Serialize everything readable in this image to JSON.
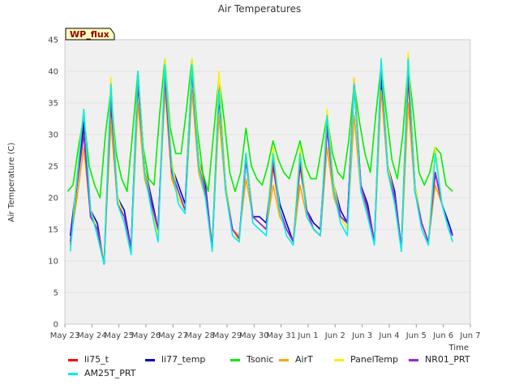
{
  "chart_data": {
    "type": "line",
    "title": "Air Temperatures",
    "xlabel": "Time",
    "ylabel": "Air Temperature (C)",
    "badge": "WP_flux",
    "ylim": [
      0,
      45
    ],
    "yticks": [
      0,
      5,
      10,
      15,
      20,
      25,
      30,
      35,
      40,
      45
    ],
    "xlim": [
      0,
      15
    ],
    "xticks": [
      "May 23",
      "May 24",
      "May 25",
      "May 26",
      "May 27",
      "May 28",
      "May 29",
      "May 30",
      "May 31",
      "Jun 1",
      "Jun 2",
      "Jun 3",
      "Jun 4",
      "Jun 5",
      "Jun 6",
      "Jun 7"
    ],
    "x_unit": "days since May 23",
    "banded_background": true,
    "series": [
      {
        "name": "li75_t",
        "color": "#ff0000",
        "x": [
          0.2,
          0.45,
          0.7,
          0.95,
          1.2,
          1.45,
          1.7,
          1.95,
          2.2,
          2.45,
          2.7,
          2.95,
          3.2,
          3.45,
          3.7,
          3.95,
          4.2,
          4.45,
          4.7,
          4.95,
          5.2,
          5.45,
          5.7,
          5.95,
          6.2,
          6.45,
          6.7,
          6.95,
          7.2,
          7.45,
          7.7,
          7.95,
          8.2,
          8.45,
          8.7,
          8.95,
          9.2,
          9.45,
          9.7,
          9.95,
          10.2,
          10.45,
          10.7,
          10.95,
          11.2,
          11.45,
          11.7,
          11.95,
          12.2,
          12.45,
          12.7,
          12.95,
          13.2,
          13.45,
          13.7,
          13.95,
          14.2,
          14.35
        ],
        "y": [
          12.5,
          22,
          31,
          17,
          15,
          9.5,
          35,
          19,
          17,
          12,
          38,
          24,
          19,
          15,
          39,
          24,
          20,
          18,
          40,
          25,
          21,
          12,
          38,
          21,
          15,
          13.5,
          26,
          17,
          16,
          15,
          25,
          18,
          15,
          13,
          25,
          18,
          15,
          14,
          31,
          21,
          17,
          16,
          39,
          22,
          18,
          13,
          41,
          24,
          20,
          12,
          39,
          21,
          16,
          13,
          24,
          19,
          15,
          14
        ]
      },
      {
        "name": "li77_temp",
        "color": "#0000cc",
        "x": [
          0.2,
          0.45,
          0.7,
          0.95,
          1.2,
          1.45,
          1.7,
          1.95,
          2.2,
          2.45,
          2.7,
          2.95,
          3.2,
          3.45,
          3.7,
          3.95,
          4.2,
          4.45,
          4.7,
          4.95,
          5.2,
          5.45,
          5.7,
          5.95,
          6.2,
          6.45,
          6.7,
          6.95,
          7.2,
          7.45,
          7.7,
          7.95,
          8.2,
          8.45,
          8.7,
          8.95,
          9.2,
          9.45,
          9.7,
          9.95,
          10.2,
          10.45,
          10.7,
          10.95,
          11.2,
          11.45,
          11.7,
          11.95,
          12.2,
          12.45,
          12.7,
          12.95,
          13.2,
          13.45,
          13.7,
          13.95,
          14.2,
          14.35
        ],
        "y": [
          14,
          23,
          32,
          18,
          16,
          9.5,
          37,
          20,
          18,
          12,
          40,
          25,
          20,
          15,
          40,
          25,
          22,
          19,
          41,
          26,
          22,
          12,
          36,
          22,
          15,
          13.5,
          27,
          17,
          17,
          16,
          26,
          19,
          16,
          13,
          26,
          18,
          16,
          15,
          32,
          22,
          18,
          16,
          38,
          22,
          19,
          13,
          39,
          25,
          21,
          12,
          42,
          22,
          16,
          13,
          24,
          19,
          16,
          14
        ]
      },
      {
        "name": "Tsonic",
        "color": "#00ee00",
        "x": [
          0.1,
          0.3,
          0.5,
          0.7,
          0.9,
          1.1,
          1.3,
          1.5,
          1.7,
          1.9,
          2.1,
          2.3,
          2.5,
          2.7,
          2.9,
          3.1,
          3.3,
          3.5,
          3.7,
          3.9,
          4.1,
          4.3,
          4.5,
          4.7,
          4.9,
          5.1,
          5.3,
          5.5,
          5.7,
          5.9,
          6.1,
          6.3,
          6.5,
          6.7,
          6.9,
          7.1,
          7.3,
          7.5,
          7.7,
          7.9,
          8.1,
          8.3,
          8.5,
          8.7,
          8.9,
          9.1,
          9.3,
          9.5,
          9.7,
          9.9,
          10.1,
          10.3,
          10.5,
          10.7,
          10.9,
          11.1,
          11.3,
          11.5,
          11.7,
          11.9,
          12.1,
          12.3,
          12.5,
          12.7,
          12.9,
          13.1,
          13.3,
          13.5,
          13.7,
          13.9,
          14.1,
          14.35
        ],
        "y": [
          21,
          22,
          28,
          33,
          25,
          22,
          20,
          30,
          37,
          27,
          23,
          21,
          30,
          40,
          28,
          23,
          22,
          33,
          42,
          31,
          27,
          27,
          34,
          42,
          31,
          24,
          21,
          30,
          39,
          32,
          24,
          21,
          24,
          31,
          25,
          23,
          22,
          25,
          29,
          26,
          24,
          23,
          26,
          29,
          25,
          23,
          23,
          28,
          33,
          27,
          24,
          23,
          29,
          38,
          32,
          27,
          24,
          33,
          41,
          33,
          26,
          23,
          30,
          41,
          33,
          24,
          22,
          24,
          28,
          27,
          22,
          21
        ]
      },
      {
        "name": "AirT",
        "color": "#ffa500",
        "x": [
          0.2,
          0.45,
          0.7,
          0.95,
          1.2,
          1.45,
          1.7,
          1.95,
          2.2,
          2.45,
          2.7,
          2.95,
          3.2,
          3.45,
          3.7,
          3.95,
          4.2,
          4.45,
          4.7,
          4.95,
          5.2,
          5.45,
          5.7,
          5.95,
          6.2,
          6.45,
          6.7,
          6.95,
          7.2,
          7.45,
          7.7,
          7.95,
          8.2,
          8.45,
          8.7,
          8.95,
          9.2,
          9.45,
          9.7,
          9.95,
          10.2,
          10.45,
          10.7,
          10.95,
          11.2,
          11.45,
          11.7,
          11.95,
          12.2,
          12.45,
          12.7,
          12.95,
          13.2,
          13.45,
          13.7,
          13.95,
          14.2,
          14.35
        ],
        "y": [
          13,
          20,
          28,
          17,
          15,
          10,
          32,
          19,
          17,
          12,
          35,
          23,
          19,
          15,
          37,
          23,
          20,
          18,
          37,
          24,
          20,
          13,
          33,
          21,
          15,
          14,
          23,
          17,
          16,
          15,
          22,
          17,
          15,
          13,
          22,
          17,
          15,
          14,
          28,
          20,
          17,
          15,
          33,
          21,
          18,
          13,
          37,
          24,
          20,
          12,
          35,
          21,
          16,
          13,
          22,
          19,
          15,
          14
        ]
      },
      {
        "name": "PanelTemp",
        "color": "#ffee00",
        "x": [
          0.2,
          0.45,
          0.7,
          0.95,
          1.2,
          1.45,
          1.7,
          1.95,
          2.2,
          2.45,
          2.7,
          2.95,
          3.2,
          3.45,
          3.7,
          3.95,
          4.2,
          4.45,
          4.7,
          4.95,
          5.2,
          5.45,
          5.7,
          5.95,
          6.2,
          6.45,
          6.7,
          6.95,
          7.2,
          7.45,
          7.7,
          7.95,
          8.2,
          8.45,
          8.7,
          8.95,
          9.2,
          9.45,
          9.7,
          9.95,
          10.2,
          10.45,
          10.7,
          10.95,
          11.2,
          11.45,
          11.7,
          11.95,
          12.2,
          12.45,
          12.7,
          12.95,
          13.2,
          13.45,
          13.7,
          13.95,
          14.2,
          14.35
        ],
        "y": [
          12,
          24,
          34,
          18,
          15,
          10,
          39,
          20,
          17,
          11,
          40,
          25,
          19,
          14,
          42,
          26,
          20,
          18,
          42,
          26,
          21,
          12,
          40,
          22,
          15,
          13,
          27,
          17,
          16,
          15,
          28,
          18,
          15,
          13,
          28,
          18,
          15,
          14,
          34,
          22,
          17,
          15,
          39,
          22,
          18,
          13,
          42,
          25,
          20,
          12,
          43,
          22,
          16,
          13,
          28,
          19,
          15,
          14
        ]
      },
      {
        "name": "NR01_PRT",
        "color": "#9922dd",
        "x": [
          0.2,
          0.45,
          0.7,
          0.95,
          1.2,
          1.45,
          1.7,
          1.95,
          2.2,
          2.45,
          2.7,
          2.95,
          3.2,
          3.45,
          3.7,
          3.95,
          4.2,
          4.45,
          4.7,
          4.95,
          5.2,
          5.45,
          5.7,
          5.95,
          6.2,
          6.45,
          6.7,
          6.95,
          7.2,
          7.45,
          7.7,
          7.95,
          8.2,
          8.45,
          8.7,
          8.95,
          9.2,
          9.45,
          9.7,
          9.95,
          10.2,
          10.45,
          10.7,
          10.95,
          11.2,
          11.45,
          11.7,
          11.95,
          12.2,
          12.45,
          12.7,
          12.95,
          13.2,
          13.45,
          13.7,
          13.95,
          14.2,
          14.35
        ],
        "y": [
          13,
          22,
          30,
          17,
          15,
          9.5,
          36,
          19,
          17,
          12,
          39,
          24,
          19,
          15,
          39,
          24,
          21,
          18,
          40,
          25,
          21,
          12,
          37,
          21,
          15,
          13.5,
          26,
          17,
          16,
          15,
          26,
          18,
          15,
          13,
          26,
          18,
          15,
          14,
          31,
          21,
          17,
          16,
          38,
          22,
          18,
          13,
          41,
          24,
          20,
          12,
          41,
          21,
          16,
          13,
          24,
          19,
          15,
          14
        ]
      },
      {
        "name": "AM25T_PRT",
        "color": "#00eeee",
        "x": [
          0.2,
          0.45,
          0.7,
          0.95,
          1.2,
          1.45,
          1.7,
          1.95,
          2.2,
          2.45,
          2.7,
          2.95,
          3.2,
          3.45,
          3.7,
          3.95,
          4.2,
          4.45,
          4.7,
          4.95,
          5.2,
          5.45,
          5.7,
          5.95,
          6.2,
          6.45,
          6.7,
          6.95,
          7.2,
          7.45,
          7.7,
          7.95,
          8.2,
          8.45,
          8.7,
          8.95,
          9.2,
          9.45,
          9.7,
          9.95,
          10.2,
          10.45,
          10.7,
          10.95,
          11.2,
          11.45,
          11.7,
          11.95,
          12.2,
          12.45,
          12.7,
          12.95,
          13.2,
          13.45,
          13.7,
          13.95,
          14.2,
          14.35
        ],
        "y": [
          11.5,
          23,
          34,
          18,
          14,
          9.5,
          38,
          19,
          16,
          11,
          40,
          24,
          18,
          13,
          41,
          25,
          19,
          17.5,
          41,
          25,
          20,
          11.5,
          37,
          21,
          14,
          13,
          27,
          16,
          15,
          14,
          27,
          18,
          14,
          12.5,
          27,
          17,
          15,
          14,
          33,
          21,
          16,
          14,
          38,
          21,
          17,
          12.5,
          42,
          24,
          19,
          11.5,
          42,
          21,
          15,
          12.5,
          27,
          19,
          15,
          13
        ]
      }
    ]
  }
}
